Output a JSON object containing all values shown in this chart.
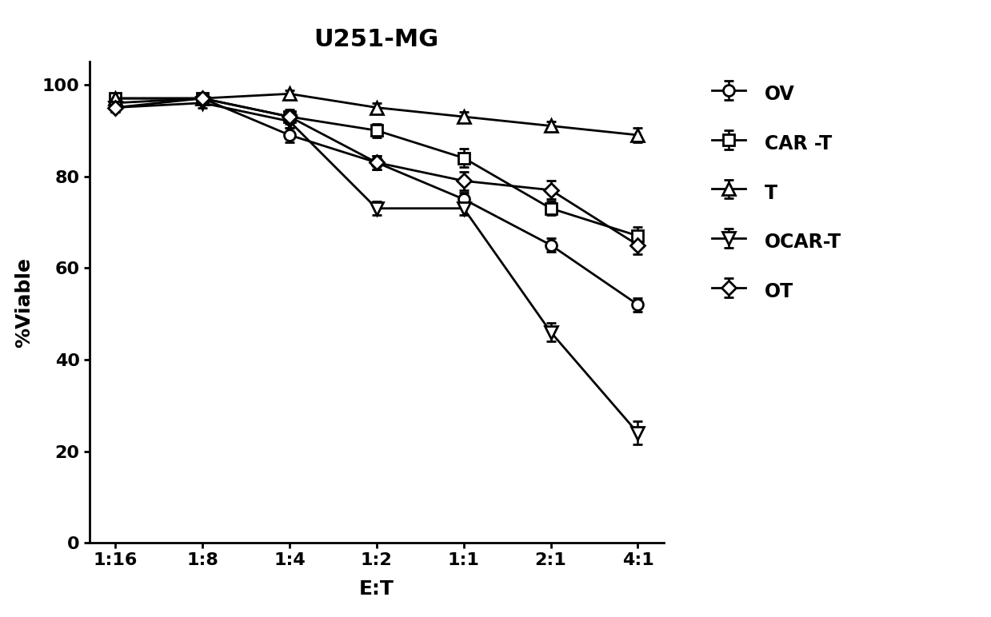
{
  "title": "U251-MG",
  "xlabel": "E:T",
  "ylabel": "%Viable",
  "x_labels": [
    "1:16",
    "1:8",
    "1:4",
    "1:2",
    "1:1",
    "2:1",
    "4:1"
  ],
  "x_values": [
    0,
    1,
    2,
    3,
    4,
    5,
    6
  ],
  "ylim": [
    0,
    105
  ],
  "yticks": [
    0,
    20,
    40,
    60,
    80,
    100
  ],
  "series": {
    "OV": {
      "y": [
        96,
        97,
        89,
        83,
        75,
        65,
        52
      ],
      "yerr": [
        1.0,
        1.0,
        1.5,
        1.5,
        1.5,
        1.5,
        1.5
      ],
      "marker": "o",
      "markersize": 10,
      "label": "OV"
    },
    "CAR-T": {
      "y": [
        97,
        97,
        93,
        90,
        84,
        73,
        67
      ],
      "yerr": [
        0.8,
        0.8,
        1.2,
        1.5,
        2.0,
        1.5,
        2.0
      ],
      "marker": "s",
      "markersize": 10,
      "label": "CAR -T"
    },
    "T": {
      "y": [
        97,
        97,
        98,
        95,
        93,
        91,
        89
      ],
      "yerr": [
        0.8,
        0.8,
        0.8,
        1.0,
        1.0,
        1.0,
        1.5
      ],
      "marker": "^",
      "markersize": 12,
      "label": "T"
    },
    "OCAR-T": {
      "y": [
        95,
        96,
        92,
        73,
        73,
        46,
        24
      ],
      "yerr": [
        1.0,
        1.0,
        1.5,
        1.5,
        1.5,
        2.0,
        2.5
      ],
      "marker": "v",
      "markersize": 12,
      "label": "OCAR-T"
    },
    "OT": {
      "y": [
        95,
        97,
        93,
        83,
        79,
        77,
        65
      ],
      "yerr": [
        1.0,
        1.0,
        1.5,
        1.5,
        2.0,
        2.0,
        2.0
      ],
      "marker": "D",
      "markersize": 9,
      "label": "OT"
    }
  },
  "series_order": [
    "OV",
    "CAR-T",
    "T",
    "OCAR-T",
    "OT"
  ],
  "line_color": "#000000",
  "background_color": "#ffffff",
  "title_fontsize": 22,
  "label_fontsize": 18,
  "tick_fontsize": 16,
  "legend_fontsize": 17
}
